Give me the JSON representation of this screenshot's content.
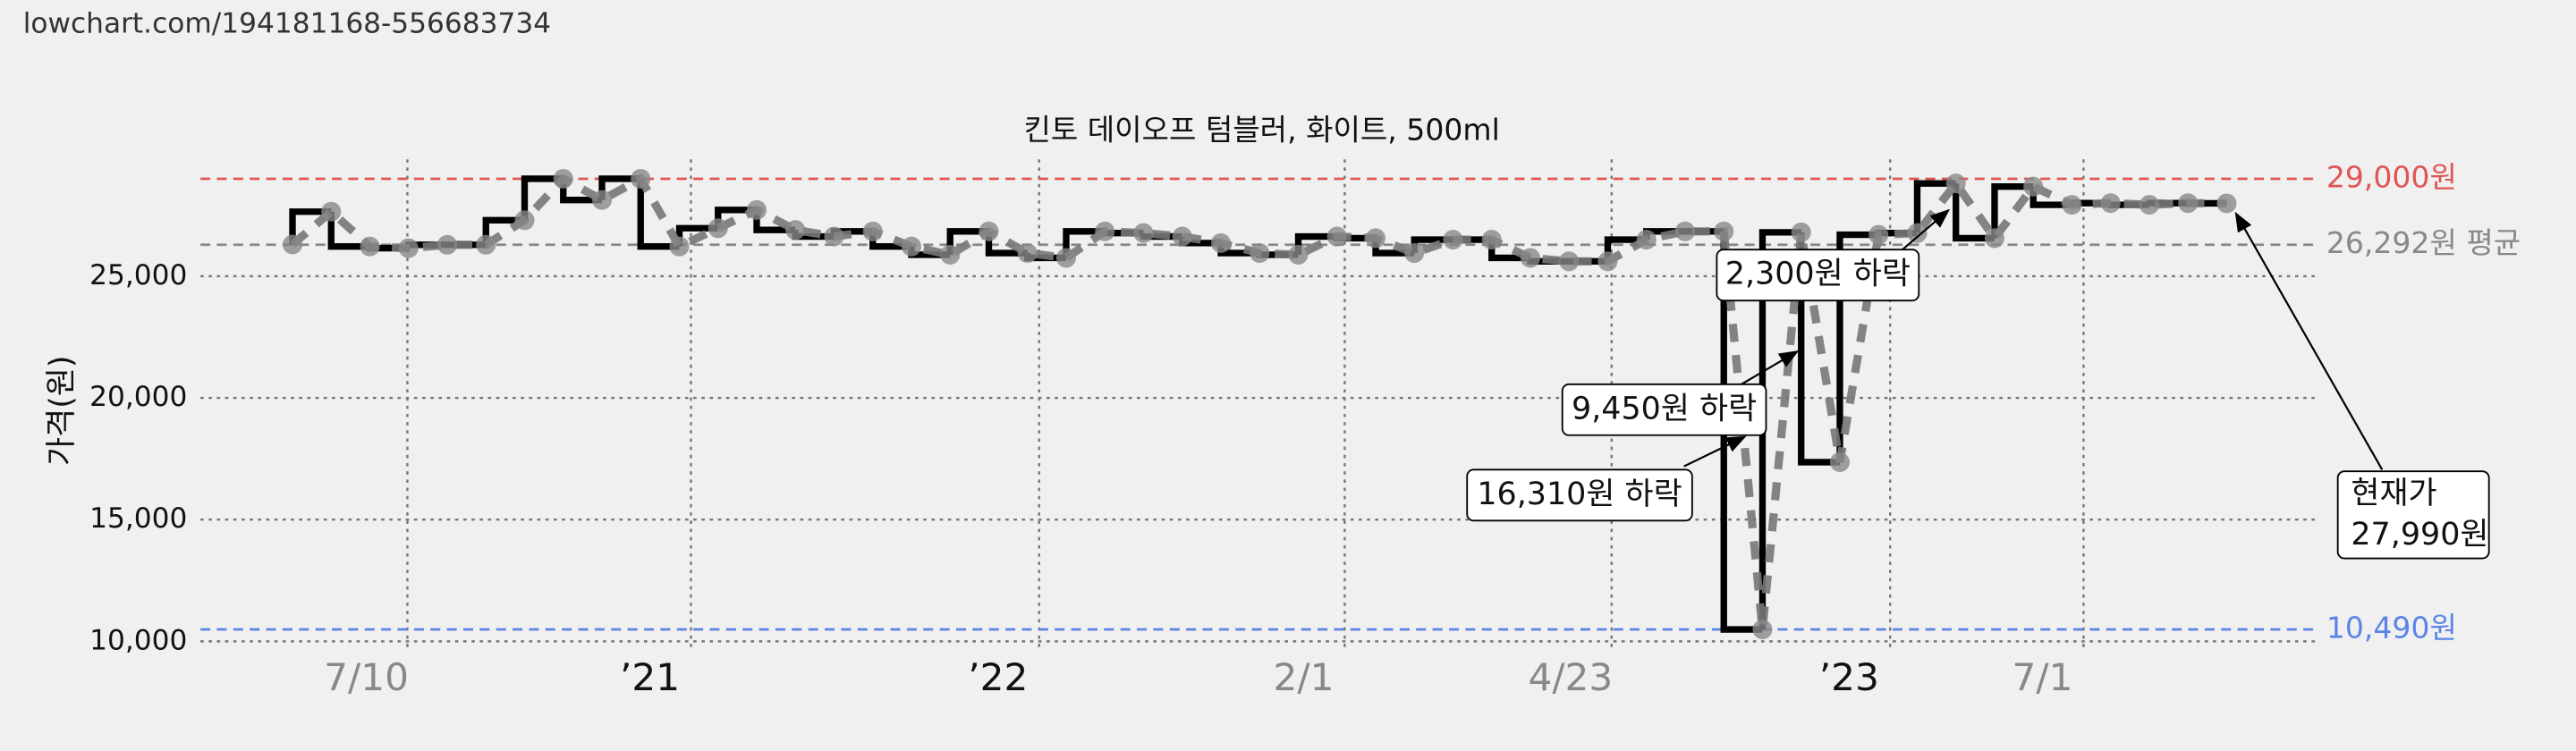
{
  "source": "lowchart.com/194181168-556683734",
  "chart_data": {
    "type": "step-line",
    "title": "킨토 데이오프 텀블러, 화이트, 500ml",
    "y_label": "가격(원)",
    "x": [
      0,
      1,
      2,
      3,
      4,
      5,
      6,
      7,
      8,
      9,
      10,
      11,
      12,
      13,
      14,
      15,
      16,
      17,
      18,
      19,
      20,
      21,
      22,
      23,
      24,
      25,
      26,
      27,
      28,
      29,
      30,
      31,
      32,
      33,
      34,
      35,
      36,
      37,
      38,
      39,
      40,
      41,
      42,
      43,
      44,
      45,
      46,
      47,
      48,
      49,
      50
    ],
    "values": [
      26300,
      27650,
      26220,
      26150,
      26290,
      26290,
      27300,
      29000,
      28130,
      29000,
      26220,
      26970,
      27720,
      26900,
      26630,
      26840,
      26220,
      25880,
      26840,
      25950,
      25750,
      26840,
      26770,
      26630,
      26360,
      25950,
      25880,
      26630,
      26560,
      25950,
      26500,
      26500,
      25750,
      25610,
      25610,
      26500,
      26840,
      26840,
      10490,
      26800,
      17360,
      26700,
      26770,
      28810,
      26560,
      28680,
      27930,
      28000,
      27930,
      28000,
      27990
    ],
    "color": "#000000",
    "dash_color": "#777777",
    "xlim": [
      -2.38,
      52.32
    ],
    "xticks": [
      {
        "value": 2.97,
        "label": "7/10"
      },
      {
        "value": 10.3,
        "label": "’21"
      },
      {
        "value": 19.3,
        "label": "’22"
      },
      {
        "value": 27.2,
        "label": "2/1"
      },
      {
        "value": 34.1,
        "label": "4/23"
      },
      {
        "value": 41.3,
        "label": "’23"
      },
      {
        "value": 46.3,
        "label": "7/1"
      }
    ],
    "ylim": [
      9700,
      29800
    ],
    "yticks": [
      {
        "value": 10000,
        "label": "10,000"
      },
      {
        "value": 15000,
        "label": "15,000"
      },
      {
        "value": 20000,
        "label": "20,000"
      },
      {
        "value": 25000,
        "label": "25,000"
      }
    ],
    "grid": true,
    "reference_lines": [
      {
        "value": 29000,
        "label": "29,000원",
        "color": "#e05555"
      },
      {
        "value": 26292,
        "label": "26,292원 평균",
        "color": "#888888"
      },
      {
        "value": 10490,
        "label": "10,490원",
        "color": "#5b84e6"
      }
    ],
    "annotations": [
      "16,310원 하락",
      "9,450원 하락",
      "2,300원 하락",
      [
        "현재가",
        "27,990원"
      ]
    ]
  }
}
